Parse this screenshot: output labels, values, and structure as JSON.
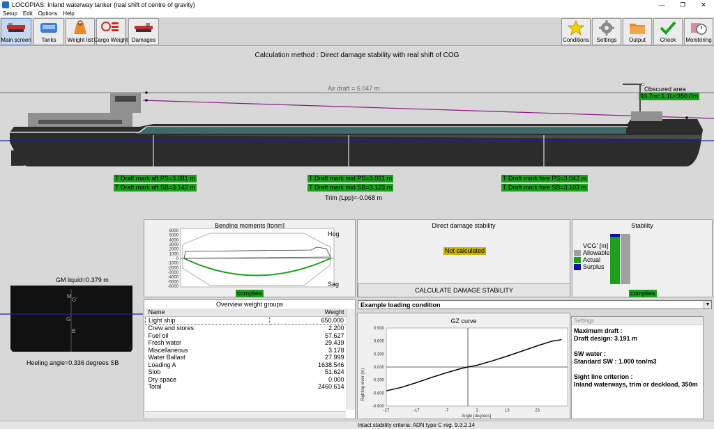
{
  "window": {
    "title": "LOCOPIAS: Inland waterway tanker (real shift of centre of gravity)",
    "minimize": "—",
    "maximize": "❐",
    "close": "✕"
  },
  "menu": [
    "Setup",
    "Edit",
    "Options",
    "Help"
  ],
  "toolbar": {
    "left": [
      {
        "label": "Main screen",
        "icon": "ship-icon"
      },
      {
        "label": "Tanks",
        "icon": "tanks-icon"
      },
      {
        "label": "Weight list",
        "icon": "weight-icon"
      },
      {
        "label": "Cargo Weight",
        "icon": "cargo-weight-icon"
      },
      {
        "label": "Damages",
        "icon": "damaged-ship-icon"
      }
    ],
    "right": [
      {
        "label": "Conditions",
        "icon": "star-icon"
      },
      {
        "label": "Settings",
        "icon": "gear-icon"
      },
      {
        "label": "Output",
        "icon": "folder-icon"
      },
      {
        "label": "Check",
        "icon": "checkmark-icon"
      },
      {
        "label": "Monitoring",
        "icon": "stopwatch-icon"
      }
    ]
  },
  "calc_method": "Calculation method : Direct damage stability with real shift of COG",
  "ship": {
    "air_draft": "Air draft = 6.047 m",
    "obscured_title": "Obscured area",
    "obscured_value": "93.7m=1.1L<350.0m",
    "draft_aft_ps": "T Draft mark aft PS=3.081 m",
    "draft_aft_sb": "T Draft mark aft SB=3.142 m",
    "draft_mid_ps": "T Draft mark mid PS=3.061 m",
    "draft_mid_sb": "T Draft mark mid SB=3.123 m",
    "draft_fore_ps": "T Draft mark fore PS=3.042 m",
    "draft_fore_sb": "T Draft mark fore SB=3.103 m",
    "trim": "Trim (Lpp)=-0.068 m"
  },
  "cross_section": {
    "gm_liquid": "GM liquid=0.379 m",
    "heeling": "Heeling angle=0.336 degrees SB",
    "labels": {
      "m": "M",
      "g_prime": "G'",
      "g": "G",
      "b": "B"
    }
  },
  "bending": {
    "title": "Bending moments [tonm]",
    "hog": "Hog",
    "sag": "Sag",
    "status": "complies",
    "ticks": [
      "6000",
      "5000",
      "4000",
      "3000",
      "2000",
      "1000",
      "0",
      "-1000",
      "-2000",
      "-3000",
      "-4000",
      "-5000",
      "-6000"
    ]
  },
  "weights": {
    "title": "Overview weight groups",
    "col_name": "Name",
    "col_weight": "Weight",
    "rows": [
      {
        "name": "Light ship",
        "weight": "650.000"
      },
      {
        "name": "Crew and stores",
        "weight": "2.200"
      },
      {
        "name": "Fuel oil",
        "weight": "57.627"
      },
      {
        "name": "Fresh water",
        "weight": "29.439"
      },
      {
        "name": "Miscellaneous",
        "weight": "3.178"
      },
      {
        "name": "Water Ballast",
        "weight": "27.999"
      },
      {
        "name": "Loading A",
        "weight": "1638.546"
      },
      {
        "name": "Slob",
        "weight": "51.624"
      },
      {
        "name": "Dry space",
        "weight": "0.000"
      },
      {
        "name": "Total",
        "weight": "2460.614"
      }
    ]
  },
  "damage": {
    "title": "Direct damage stability",
    "status": "Not calculated",
    "button": "CALCULATE DAMAGE STABILITY"
  },
  "stability": {
    "title": "Stability",
    "vcg_label": "VCG' [m]",
    "legend": [
      {
        "label": "Allowable",
        "color": "#a0a0a0"
      },
      {
        "label": "Actual",
        "color": "#1ca01c"
      },
      {
        "label": "Surplus",
        "color": "#1010a0"
      }
    ],
    "status": "complies"
  },
  "condition": {
    "selected": "Example loading condition"
  },
  "gz": {
    "title": "GZ curve",
    "ylabel": "Righting lever (m)",
    "xlabel": "Angle [degrees]",
    "yticks": [
      "0.900",
      "0.600",
      "0.300",
      "0.000",
      "-0.300",
      "-0.600",
      "-0.900"
    ],
    "xticks": [
      "-27",
      "-17",
      "-7",
      "3",
      "13",
      "23"
    ]
  },
  "settings": {
    "header": "Settings",
    "max_draft_title": "Maximum draft :",
    "max_draft_value": "Draft design: 3.191 m",
    "sw_title": "SW water :",
    "sw_value": "Standard SW : 1.000 ton/m3",
    "sight_title": "Sight line criterion :",
    "sight_value": "Inland waterways, trim or deckload, 350m"
  },
  "status_bar": "Intact stability criteria: ADN type C reg. 9.3.2.14",
  "chart_data": {
    "type": "line",
    "title": "GZ curve",
    "xlabel": "Angle [degrees]",
    "ylabel": "Righting lever (m)",
    "xlim": [
      -27,
      33
    ],
    "ylim": [
      -0.9,
      0.9
    ],
    "series": [
      {
        "x": [
          -27,
          -22,
          -17,
          -12,
          -7,
          -2,
          0,
          3,
          8,
          13,
          18,
          23,
          28,
          31
        ],
        "y": [
          -0.55,
          -0.47,
          -0.36,
          -0.24,
          -0.13,
          -0.03,
          0.0,
          0.04,
          0.14,
          0.25,
          0.37,
          0.49,
          0.6,
          0.63
        ]
      }
    ]
  }
}
